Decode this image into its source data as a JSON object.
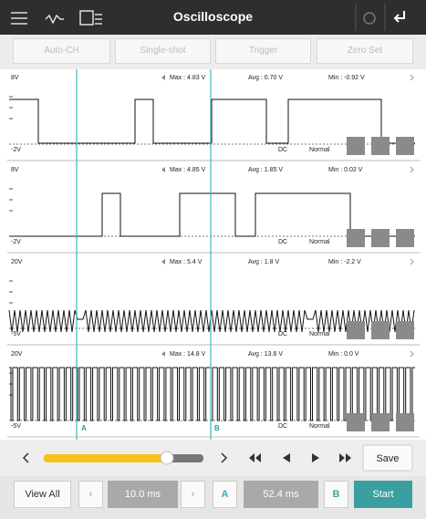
{
  "toolbar": {
    "title": "Oscilloscope"
  },
  "buttons": [
    "Auto-CH",
    "Single-shot",
    "Trigger",
    "Zero Set"
  ],
  "channels": [
    {
      "top": "8V",
      "max": "Max : 4.83 V",
      "avg": "Avg : 0.70 V",
      "min": "Min : -0.92 V",
      "bottom": "-2V",
      "coupling": "DC",
      "mode": "Normal"
    },
    {
      "top": "8V",
      "max": "Max : 4.85 V",
      "avg": "Avg : 1.85 V",
      "min": "Min : 0.02 V",
      "bottom": "-2V",
      "coupling": "DC",
      "mode": "Normal"
    },
    {
      "top": "20V",
      "max": "Max : 5.4 V",
      "avg": "Avg : 1.8 V",
      "min": "Min : -2.2 V",
      "bottom": "-5V",
      "coupling": "DC",
      "mode": "Normal"
    },
    {
      "top": "20V",
      "max": "Max : 14.8 V",
      "avg": "Avg : 13.6 V",
      "min": "Min : 0.0 V",
      "bottom": "-5V",
      "coupling": "DC",
      "mode": "Normal"
    }
  ],
  "cursors": {
    "a": "A",
    "b": "B"
  },
  "controls": {
    "save": "Save"
  },
  "footer": {
    "view_all": "View All",
    "time_div": "10.0 ms",
    "cursor_a": "A",
    "delta": "52.4 ms",
    "cursor_b": "B",
    "start": "Start"
  }
}
